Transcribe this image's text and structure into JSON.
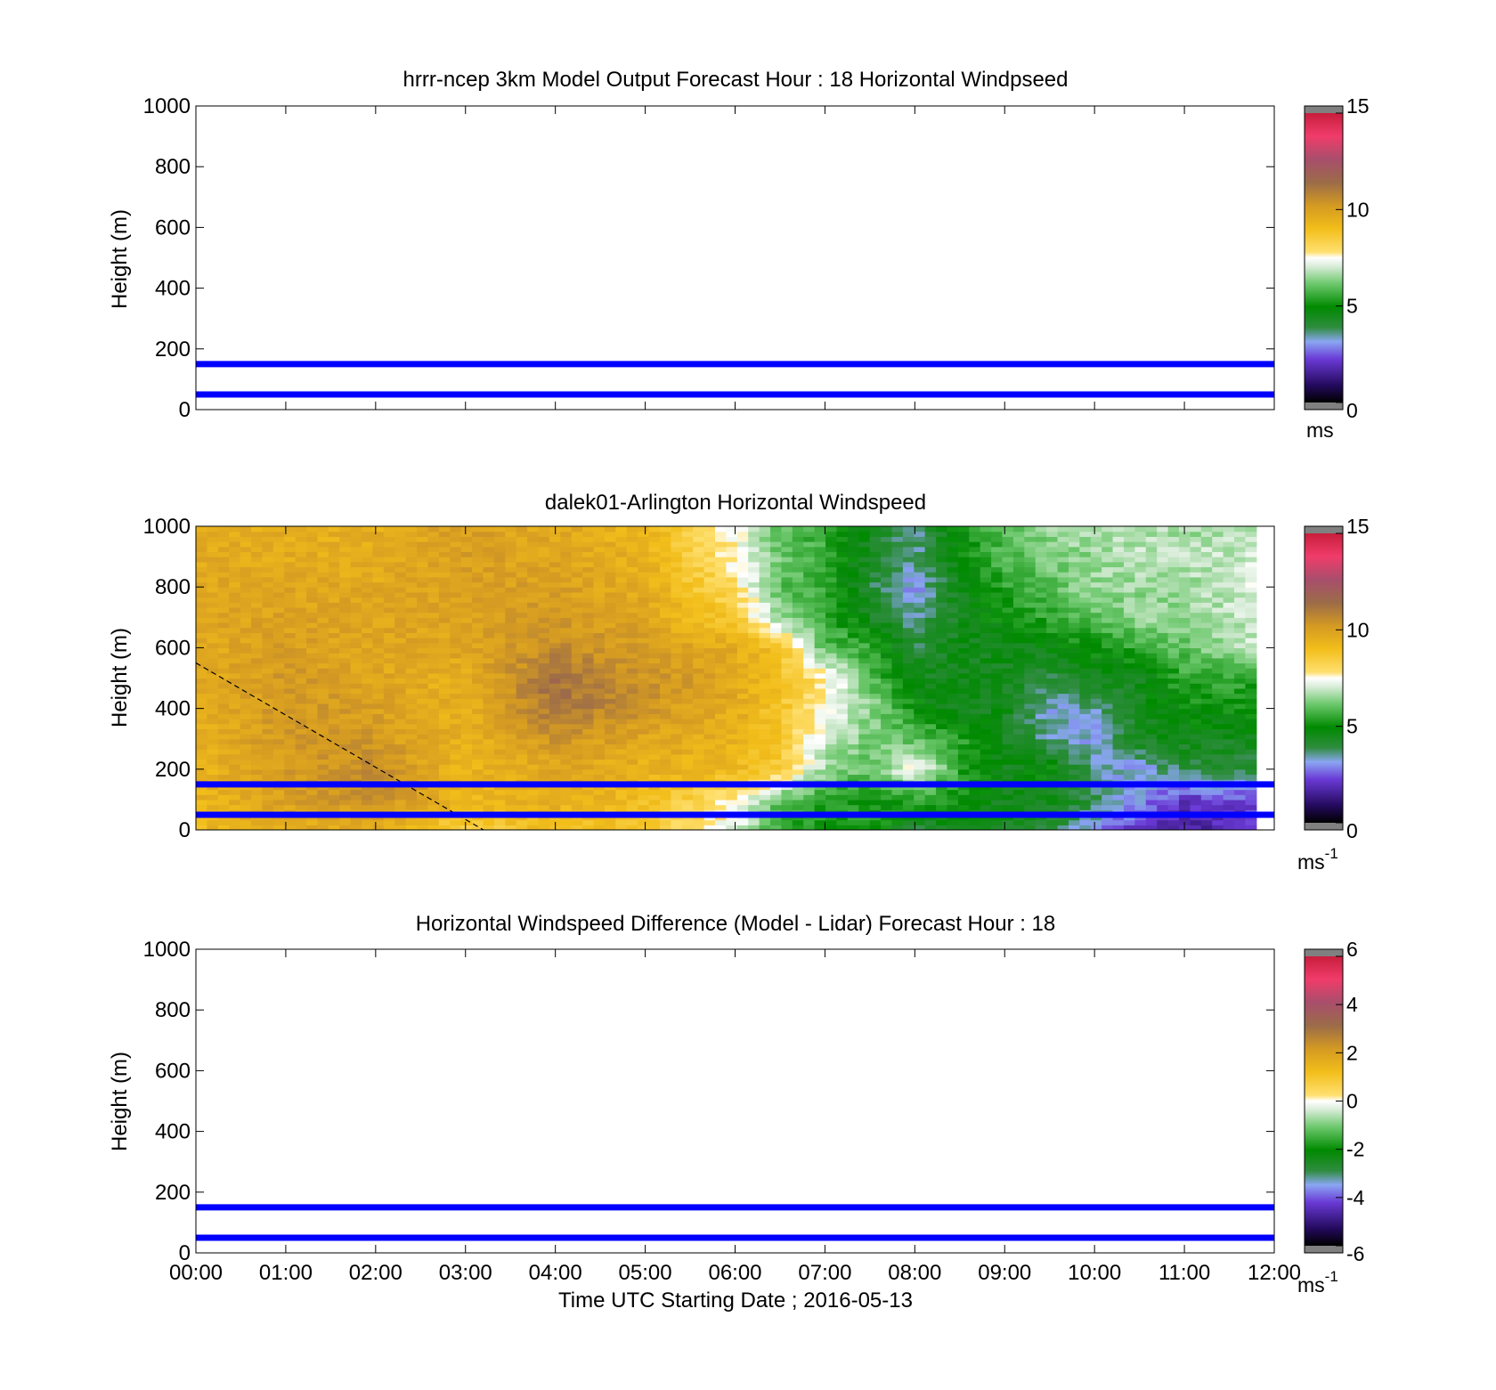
{
  "figure": {
    "xlabel": "Time UTC  Starting Date ; 2016-05-13",
    "x_ticks": [
      "00:00",
      "01:00",
      "02:00",
      "03:00",
      "04:00",
      "05:00",
      "06:00",
      "07:00",
      "08:00",
      "09:00",
      "10:00",
      "11:00",
      "12:00"
    ]
  },
  "chart_data": [
    {
      "type": "heatmap",
      "title": "hrrr-ncep 3km Model Output   Forecast Hour : 18 Horizontal Windpseed",
      "ylabel": "Height (m)",
      "xlim": [
        0,
        12
      ],
      "ylim": [
        0,
        1000
      ],
      "y_ticks": [
        "0",
        "200",
        "400",
        "600",
        "800",
        "1000"
      ],
      "colorbar": {
        "ticks": [
          "0",
          "5",
          "10",
          "15"
        ],
        "range": [
          0,
          15
        ],
        "unit": "ms"
      },
      "reference_lines_m": [
        50,
        150
      ],
      "reference_line_color": "#0000ff",
      "field": "empty"
    },
    {
      "type": "heatmap",
      "title": "dalek01-Arlington  Horizontal Windspeed",
      "ylabel": "Height (m)",
      "xlim": [
        0,
        12
      ],
      "ylim": [
        0,
        1000
      ],
      "y_ticks": [
        "0",
        "200",
        "400",
        "600",
        "800",
        "1000"
      ],
      "colorbar": {
        "ticks": [
          "0",
          "5",
          "10",
          "15"
        ],
        "range": [
          0,
          15
        ],
        "unit": "ms",
        "unit_exponent": "-1"
      },
      "reference_lines_m": [
        50,
        150
      ],
      "reference_line_color": "#0000ff",
      "dashed_line": {
        "from": [
          0,
          550
        ],
        "to": [
          3.2,
          0
        ]
      },
      "data_end_hour": 11.8,
      "height_levels_m": [
        0,
        100,
        200,
        300,
        400,
        500,
        600,
        700,
        800,
        900,
        1000
      ],
      "time_hours": [
        0,
        1,
        2,
        3,
        4,
        5,
        6,
        6.5,
        7,
        7.5,
        8,
        8.5,
        9,
        9.5,
        10,
        10.5,
        11,
        11.8
      ],
      "windspeed_ms": [
        [
          9.2,
          9.6,
          9.4,
          8.5,
          9.0,
          8.6,
          7.2,
          5.5,
          5.0,
          5.5,
          4.0,
          4.5,
          4.5,
          4.0,
          3.0,
          2.0,
          1.5,
          2.0
        ],
        [
          9.3,
          10.0,
          10.5,
          9.2,
          9.5,
          9.0,
          7.6,
          6.0,
          5.5,
          5.0,
          5.5,
          5.0,
          4.5,
          4.5,
          4.0,
          3.0,
          2.0,
          2.5
        ],
        [
          9.3,
          10.1,
          10.6,
          9.3,
          9.8,
          9.4,
          9.2,
          8.6,
          6.5,
          6.0,
          7.5,
          5.5,
          4.5,
          5.0,
          3.5,
          3.0,
          4.0,
          4.0
        ],
        [
          9.4,
          10.2,
          10.2,
          9.4,
          10.3,
          9.8,
          9.4,
          8.7,
          7.0,
          6.2,
          6.0,
          5.5,
          4.5,
          3.5,
          3.2,
          4.5,
          4.5,
          4.5
        ],
        [
          9.5,
          10.3,
          10.0,
          9.4,
          11.2,
          10.3,
          9.6,
          8.8,
          7.5,
          6.5,
          5.0,
          4.5,
          4.5,
          3.2,
          3.5,
          4.5,
          5.0,
          5.0
        ],
        [
          9.6,
          10.2,
          9.8,
          9.5,
          11.3,
          10.4,
          9.8,
          8.9,
          7.8,
          6.0,
          4.5,
          4.5,
          4.5,
          4.0,
          4.5,
          4.5,
          5.5,
          5.5
        ],
        [
          9.7,
          10.0,
          9.8,
          9.8,
          10.6,
          10.0,
          9.6,
          8.8,
          6.0,
          5.5,
          4.0,
          4.5,
          4.5,
          4.8,
          5.0,
          5.5,
          6.0,
          7.0
        ],
        [
          9.8,
          9.9,
          9.8,
          9.9,
          10.2,
          9.8,
          8.6,
          6.5,
          5.5,
          4.5,
          3.5,
          4.5,
          5.0,
          5.5,
          6.0,
          6.5,
          6.5,
          7.0
        ],
        [
          9.8,
          9.8,
          9.7,
          10.0,
          10.0,
          9.6,
          8.0,
          6.0,
          5.5,
          4.0,
          3.0,
          4.5,
          5.5,
          6.0,
          6.5,
          6.5,
          6.5,
          7.2
        ],
        [
          9.7,
          9.6,
          9.6,
          10.0,
          9.8,
          9.4,
          7.6,
          6.2,
          5.6,
          4.2,
          3.5,
          5.0,
          5.8,
          6.2,
          6.5,
          6.8,
          6.8,
          7.0
        ],
        [
          9.7,
          9.5,
          9.5,
          10.0,
          9.7,
          9.3,
          7.5,
          6.0,
          5.5,
          4.5,
          3.5,
          5.0,
          6.0,
          6.5,
          6.8,
          6.8,
          6.5,
          6.8
        ]
      ]
    },
    {
      "type": "heatmap",
      "title": "Horizontal Windspeed Difference (Model - Lidar) Forecast Hour : 18",
      "ylabel": "Height (m)",
      "xlim": [
        0,
        12
      ],
      "ylim": [
        0,
        1000
      ],
      "y_ticks": [
        "0",
        "200",
        "400",
        "600",
        "800",
        "1000"
      ],
      "colorbar": {
        "ticks": [
          "-6",
          "-4",
          "-2",
          "0",
          "2",
          "4",
          "6"
        ],
        "range": [
          -6,
          6
        ],
        "unit": "ms",
        "unit_exponent": "-1"
      },
      "reference_lines_m": [
        50,
        150
      ],
      "reference_line_color": "#0000ff",
      "field": "empty"
    }
  ]
}
